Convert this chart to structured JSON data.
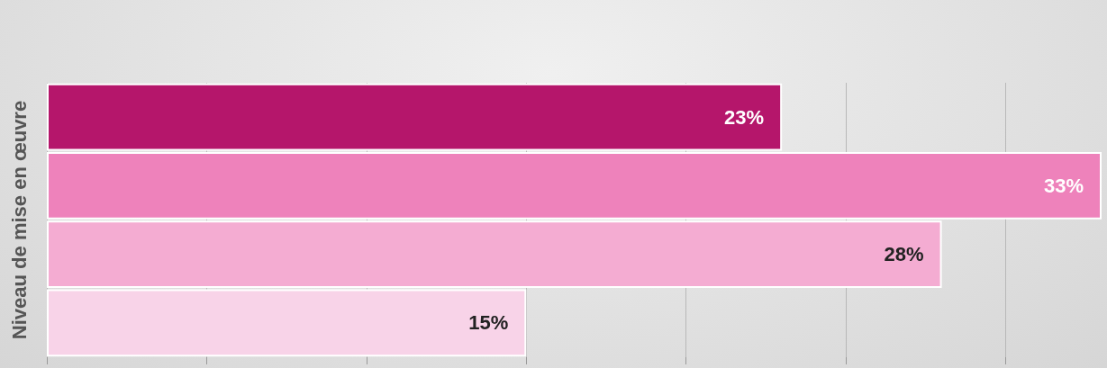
{
  "chart_data": {
    "type": "bar",
    "orientation": "horizontal",
    "ylabel": "Niveau de mise en œuvre",
    "categories": [
      null,
      null,
      null,
      null
    ],
    "values": [
      23,
      33,
      28,
      15
    ],
    "colors": [
      "#b5166b",
      "#ee82bb",
      "#f4acd2",
      "#f8d3e8"
    ],
    "value_labels": [
      "23%",
      "33%",
      "28%",
      "15%"
    ],
    "xticks": [
      {
        "value": 0,
        "label": null
      },
      {
        "value": 5,
        "label": null
      },
      {
        "value": 10,
        "label": null
      },
      {
        "value": 15,
        "label": null
      },
      {
        "value": 20,
        "label": null
      },
      {
        "value": 25,
        "label": null
      },
      {
        "value": 30,
        "label": null
      }
    ],
    "grid": "x"
  }
}
